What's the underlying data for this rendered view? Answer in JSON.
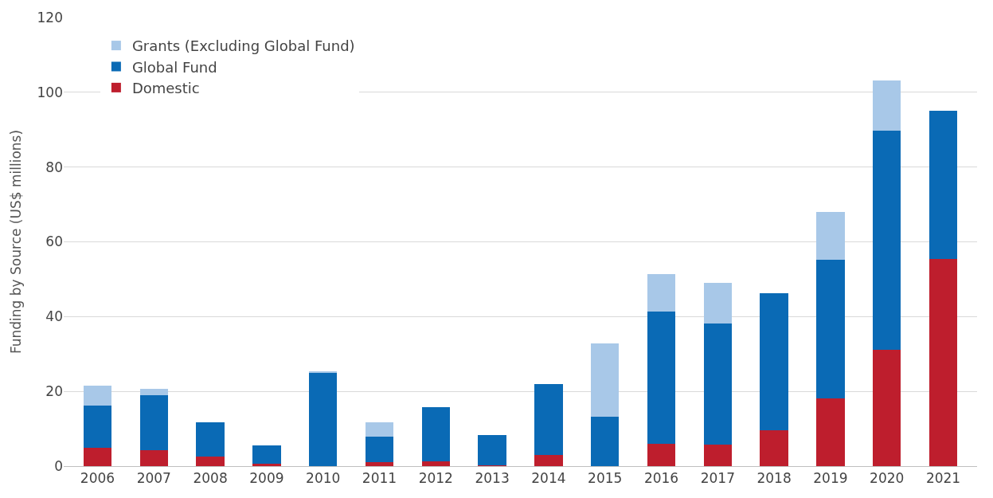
{
  "chart_data": {
    "type": "bar",
    "stacked": true,
    "ylabel": "Funding by Source (US$ millions)",
    "categories": [
      "2006",
      "2007",
      "2008",
      "2009",
      "2010",
      "2011",
      "2012",
      "2013",
      "2014",
      "2015",
      "2016",
      "2017",
      "2018",
      "2019",
      "2020",
      "2021"
    ],
    "series": [
      {
        "name": "Domestic",
        "color": "#be1e2d",
        "values": [
          4.8,
          4.2,
          2.6,
          0.6,
          0,
          1.1,
          1.2,
          0.3,
          2.9,
          0,
          6.0,
          5.7,
          9.5,
          18.1,
          31.2,
          55.5
        ]
      },
      {
        "name": "Global Fund",
        "color": "#0a6ab5",
        "values": [
          11.4,
          14.8,
          9.2,
          5.0,
          25.0,
          6.7,
          14.6,
          8.0,
          19.0,
          13.3,
          35.3,
          32.4,
          36.7,
          37.0,
          58.5,
          39.5
        ]
      },
      {
        "name": "Grants (Excluding Global Fund)",
        "color": "#a8c8e8",
        "values": [
          5.3,
          1.7,
          0,
          0,
          0.3,
          3.9,
          0,
          0,
          0,
          19.6,
          10.0,
          10.9,
          0,
          13.0,
          13.5,
          0
        ]
      }
    ],
    "ylim": [
      0,
      120
    ],
    "yticks": [
      0,
      20,
      40,
      60,
      80,
      100,
      120
    ],
    "grid": "y",
    "legend": "top left"
  }
}
